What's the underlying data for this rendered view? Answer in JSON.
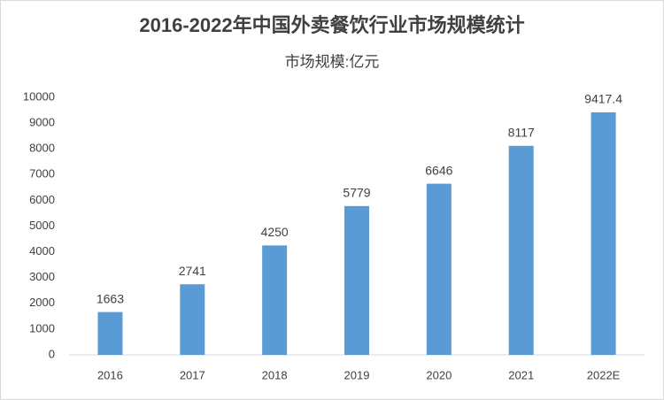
{
  "chart_data": {
    "type": "bar",
    "title": "2016-2022年中国外卖餐饮行业市场规模统计",
    "subtitle": "市场规模:亿元",
    "categories": [
      "2016",
      "2017",
      "2018",
      "2019",
      "2020",
      "2021",
      "2022E"
    ],
    "values": [
      1663,
      2741,
      4250,
      5779,
      6646,
      8117,
      9417.4
    ],
    "color": "#5b9bd5",
    "ylim": [
      0,
      10000
    ],
    "yticks": [
      0,
      1000,
      2000,
      3000,
      4000,
      5000,
      6000,
      7000,
      8000,
      9000,
      10000
    ],
    "grid": false
  }
}
